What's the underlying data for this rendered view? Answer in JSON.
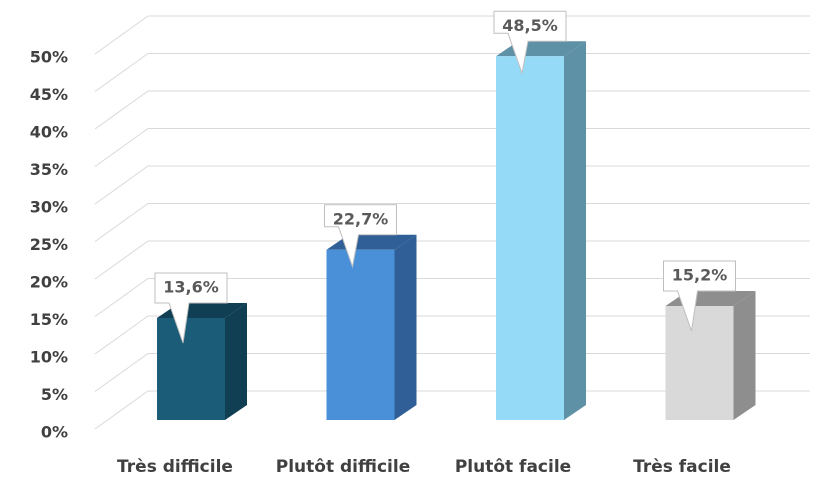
{
  "chart_data": {
    "type": "bar3d",
    "categories": [
      "Très difficile",
      "Plutôt difficile",
      "Plutôt facile",
      "Très facile"
    ],
    "values": [
      13.6,
      22.7,
      48.5,
      15.2
    ],
    "value_labels": [
      "13,6%",
      "22,7%",
      "48,5%",
      "15,2%"
    ],
    "colors": [
      "#1b5c78",
      "#4a90d9",
      "#95dbf7",
      "#d9d9d9"
    ],
    "side_colors": [
      "#103e52",
      "#2f5f96",
      "#5e90a6",
      "#8e8e8e"
    ],
    "ylim": [
      0,
      50
    ],
    "yticks": [
      {
        "value": 0,
        "label": "0%"
      },
      {
        "value": 5,
        "label": "5%"
      },
      {
        "value": 10,
        "label": "10%"
      },
      {
        "value": 15,
        "label": "15%"
      },
      {
        "value": 20,
        "label": "20%"
      },
      {
        "value": 25,
        "label": "25%"
      },
      {
        "value": 30,
        "label": "30%"
      },
      {
        "value": 35,
        "label": "35%"
      },
      {
        "value": 40,
        "label": "40%"
      },
      {
        "value": 45,
        "label": "45%"
      },
      {
        "value": 50,
        "label": "50%"
      }
    ],
    "grid": true
  }
}
